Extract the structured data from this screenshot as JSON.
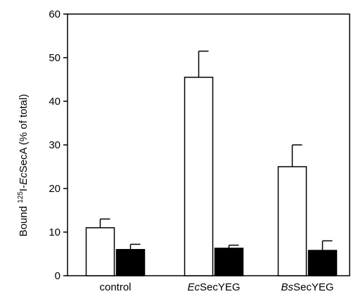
{
  "chart_data": {
    "type": "bar",
    "categories": [
      "control",
      "EcSecYEG",
      "BsSecYEG"
    ],
    "category_labels": [
      [
        {
          "text": "control",
          "italic": false
        }
      ],
      [
        {
          "text": "Ec",
          "italic": true
        },
        {
          "text": "SecYEG",
          "italic": false
        }
      ],
      [
        {
          "text": "Bs",
          "italic": true
        },
        {
          "text": "SecYEG",
          "italic": false
        }
      ]
    ],
    "series": [
      {
        "fill": "#ffffff",
        "values": [
          11,
          45.5,
          25
        ],
        "errors": [
          2,
          6,
          5
        ]
      },
      {
        "fill": "#000000",
        "values": [
          6,
          6.3,
          5.8
        ],
        "errors": [
          1.2,
          0.7,
          2.2
        ]
      }
    ],
    "ylabel": {
      "prefix": "Bound ",
      "superscript": "125",
      "main": "I-",
      "italic_part": "Ec",
      "suffix": "SecA (% of total)"
    },
    "ylim": [
      0,
      60
    ],
    "yticks": [
      "0",
      "10",
      "20",
      "30",
      "40",
      "50",
      "60"
    ],
    "grid": false,
    "legend": "none",
    "colors": {
      "axis": "#000000",
      "bar_outline": "#000000"
    }
  }
}
